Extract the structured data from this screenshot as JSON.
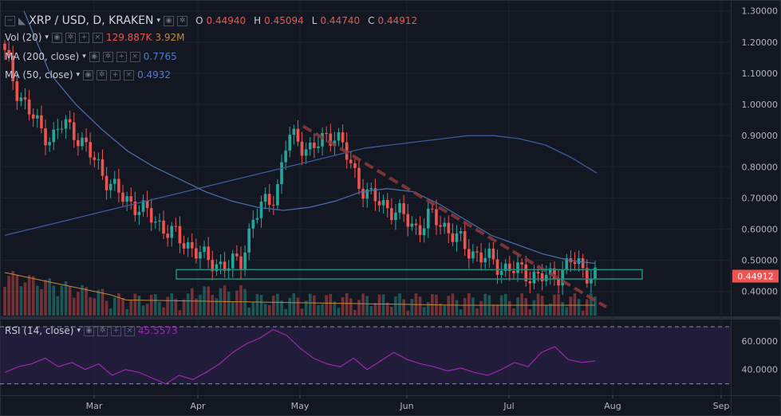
{
  "header": {
    "symbol": "XRP / USD, D, KRAKEN",
    "ohlc": {
      "o_label": "O",
      "o": "0.44940",
      "h_label": "H",
      "h": "0.45094",
      "l_label": "L",
      "l": "0.44740",
      "c_label": "C",
      "c": "0.44912"
    },
    "vol_label": "Vol (20)",
    "vol_a": "129.887K",
    "vol_b": "3.92M",
    "ma200_label": "MA (200, close)",
    "ma200_value": "0.7765",
    "ma50_label": "MA (50, close)",
    "ma50_value": "0.4932"
  },
  "rsi": {
    "label": "RSI (14, close)",
    "value": "45.5573"
  },
  "price_axis": {
    "ticks": [
      "1.30000",
      "1.20000",
      "1.10000",
      "1.00000",
      "0.90000",
      "0.80000",
      "0.70000",
      "0.60000",
      "0.50000",
      "0.40000"
    ],
    "last_price": "0.44912"
  },
  "rsi_axis": {
    "ticks": [
      "60.0000",
      "40.0000"
    ]
  },
  "time_axis": {
    "ticks": [
      "Mar",
      "Apr",
      "May",
      "Jun",
      "Jul",
      "Aug",
      "Sep"
    ]
  },
  "colors": {
    "up": "#26a69a",
    "down": "#ef5350",
    "ma200": "#3d5a99",
    "ma50": "#4a6aa8",
    "vol_ma": "#c28a3c",
    "rsi": "#9c27b0",
    "trend": "#8b3a3a",
    "support": "#1f8f7c"
  },
  "chart_data": [
    {
      "type": "candlestick",
      "title": "XRP / USD, D, KRAKEN",
      "ylim": [
        0.32,
        1.33
      ],
      "x_range": [
        "2018-02-05",
        "2018-09-03"
      ],
      "ohlc_approx_daily_close": [
        1.16,
        1.05,
        0.98,
        0.92,
        0.89,
        0.94,
        0.91,
        0.85,
        0.8,
        0.74,
        0.7,
        0.68,
        0.65,
        0.62,
        0.59,
        0.56,
        0.54,
        0.5,
        0.49,
        0.48,
        0.5,
        0.63,
        0.68,
        0.72,
        0.9,
        0.88,
        0.85,
        0.89,
        0.91,
        0.83,
        0.75,
        0.7,
        0.68,
        0.66,
        0.63,
        0.6,
        0.64,
        0.62,
        0.58,
        0.54,
        0.52,
        0.5,
        0.48,
        0.47,
        0.46,
        0.45,
        0.44,
        0.46,
        0.5,
        0.47,
        0.45
      ],
      "ma200_approx": [
        0.58,
        0.6,
        0.62,
        0.64,
        0.66,
        0.68,
        0.7,
        0.72,
        0.74,
        0.76,
        0.78,
        0.8,
        0.82,
        0.84,
        0.86,
        0.87,
        0.88,
        0.89,
        0.9,
        0.9,
        0.89,
        0.87,
        0.83,
        0.78
      ],
      "ma50_approx": [
        1.3,
        1.1,
        1.0,
        0.92,
        0.85,
        0.8,
        0.76,
        0.72,
        0.69,
        0.67,
        0.66,
        0.67,
        0.69,
        0.72,
        0.73,
        0.72,
        0.68,
        0.63,
        0.58,
        0.55,
        0.52,
        0.5,
        0.49
      ],
      "last_price": 0.44912
    },
    {
      "type": "line",
      "title": "RSI (14, close)",
      "ylim": [
        22,
        75
      ],
      "values_approx": [
        38,
        42,
        44,
        48,
        42,
        45,
        40,
        44,
        36,
        40,
        38,
        34,
        30,
        36,
        33,
        38,
        44,
        52,
        58,
        62,
        68,
        64,
        55,
        48,
        44,
        42,
        48,
        40,
        46,
        52,
        47,
        44,
        42,
        39,
        41,
        38,
        36,
        40,
        45,
        42,
        52,
        56,
        47,
        45,
        46
      ]
    }
  ]
}
